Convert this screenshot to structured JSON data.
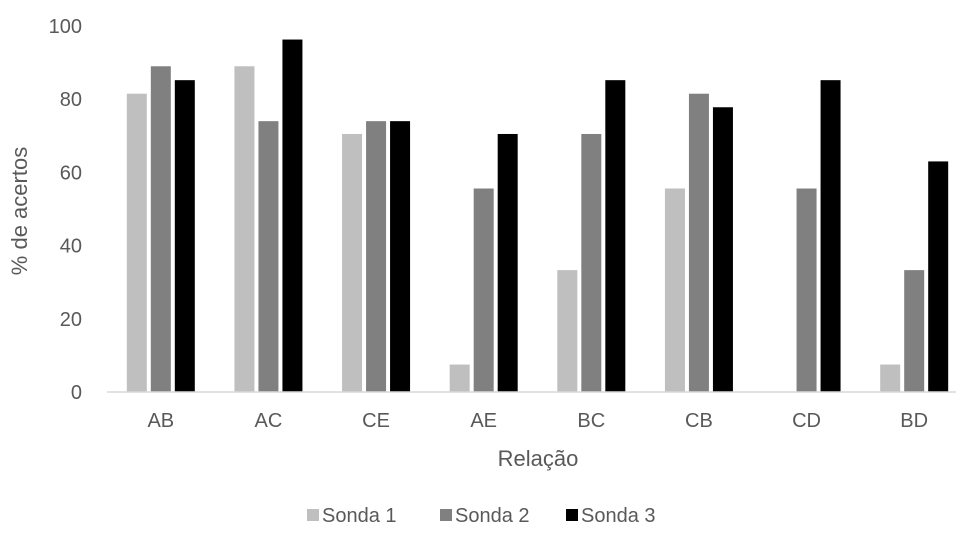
{
  "chart_data": {
    "type": "bar",
    "categories": [
      "AB",
      "AC",
      "CE",
      "AE",
      "BC",
      "CB",
      "CD",
      "BD"
    ],
    "series": [
      {
        "name": "Sonda 1",
        "color": "#bfbfbf",
        "values": [
          81.5,
          89,
          70.5,
          7.5,
          33.3,
          55.6,
          0,
          7.5
        ]
      },
      {
        "name": "Sonda 2",
        "color": "#808080",
        "values": [
          89,
          74,
          74,
          55.6,
          70.5,
          81.5,
          55.6,
          33.3
        ]
      },
      {
        "name": "Sonda 3",
        "color": "#000000",
        "values": [
          85.2,
          96.3,
          74,
          70.5,
          85.2,
          77.8,
          85.2,
          63
        ]
      }
    ],
    "title": "",
    "xlabel": "Relação",
    "ylabel": "% de acertos",
    "ylim": [
      0,
      100
    ],
    "yticks": [
      0,
      20,
      40,
      60,
      80,
      100
    ],
    "grid": false,
    "legend_position": "bottom"
  }
}
